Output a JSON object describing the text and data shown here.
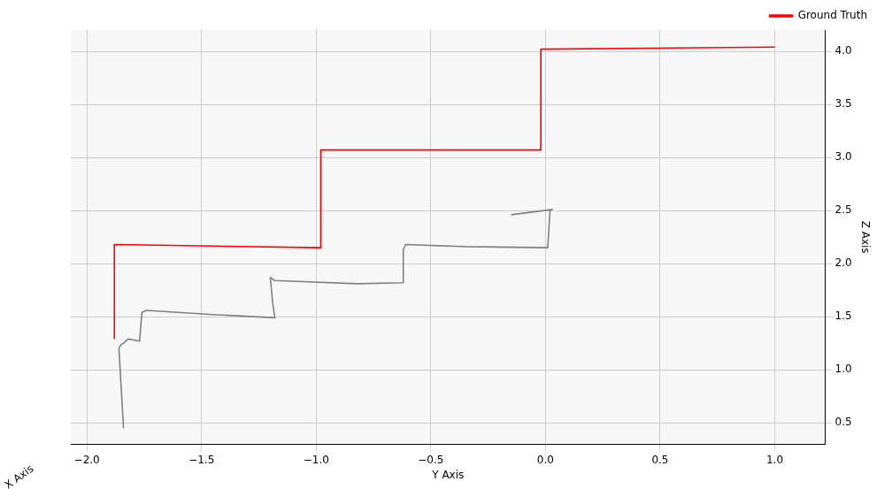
{
  "chart_data": {
    "type": "line",
    "xlabel": "Y Axis",
    "ylabel": "Z Axis",
    "annotations": [
      "X Axis"
    ],
    "xlim": [
      -2.07,
      1.22
    ],
    "xticks": [
      {
        "value": -2,
        "label": "−2.0"
      },
      -1.5,
      {
        "value": -1,
        "label": "−1.0"
      },
      -0.5,
      {
        "value": 0,
        "label": "0.0"
      },
      0.5,
      {
        "value": 1,
        "label": "1.0"
      }
    ],
    "ylim": [
      0.3,
      4.2
    ],
    "yticks": [
      0.5,
      {
        "value": 1,
        "label": "1.0"
      },
      1.5,
      {
        "value": 2,
        "label": "2.0"
      },
      2.5,
      {
        "value": 3,
        "label": "3.0"
      },
      3.5,
      {
        "value": 4,
        "label": "4.0"
      }
    ],
    "grid": true,
    "legend": "top right",
    "marker": "none",
    "line_style": "solid",
    "series": [
      {
        "name": "Ground Truth",
        "color": "#ff0000",
        "x": [
          -1.88,
          -1.88,
          -0.98,
          -0.98,
          -0.02,
          -0.02,
          1.0
        ],
        "values": [
          1.29,
          2.18,
          2.15,
          3.07,
          3.07,
          4.02,
          4.04
        ]
      },
      {
        "color": "#808080",
        "x": [
          -1.84,
          -1.86,
          -1.85,
          -1.84,
          -1.82,
          -1.77,
          -1.76,
          -1.74,
          -1.45,
          -1.18,
          -1.19,
          -1.2,
          -1.18,
          -0.82,
          -0.62,
          -0.62,
          -0.61,
          -0.35,
          0.01,
          0.02,
          0.03,
          -0.15
        ],
        "values": [
          0.45,
          1.2,
          1.24,
          1.25,
          1.29,
          1.27,
          1.54,
          1.56,
          1.52,
          1.49,
          1.64,
          1.87,
          1.84,
          1.81,
          1.82,
          2.13,
          2.18,
          2.16,
          2.15,
          2.5,
          2.51,
          2.46
        ]
      }
    ]
  }
}
